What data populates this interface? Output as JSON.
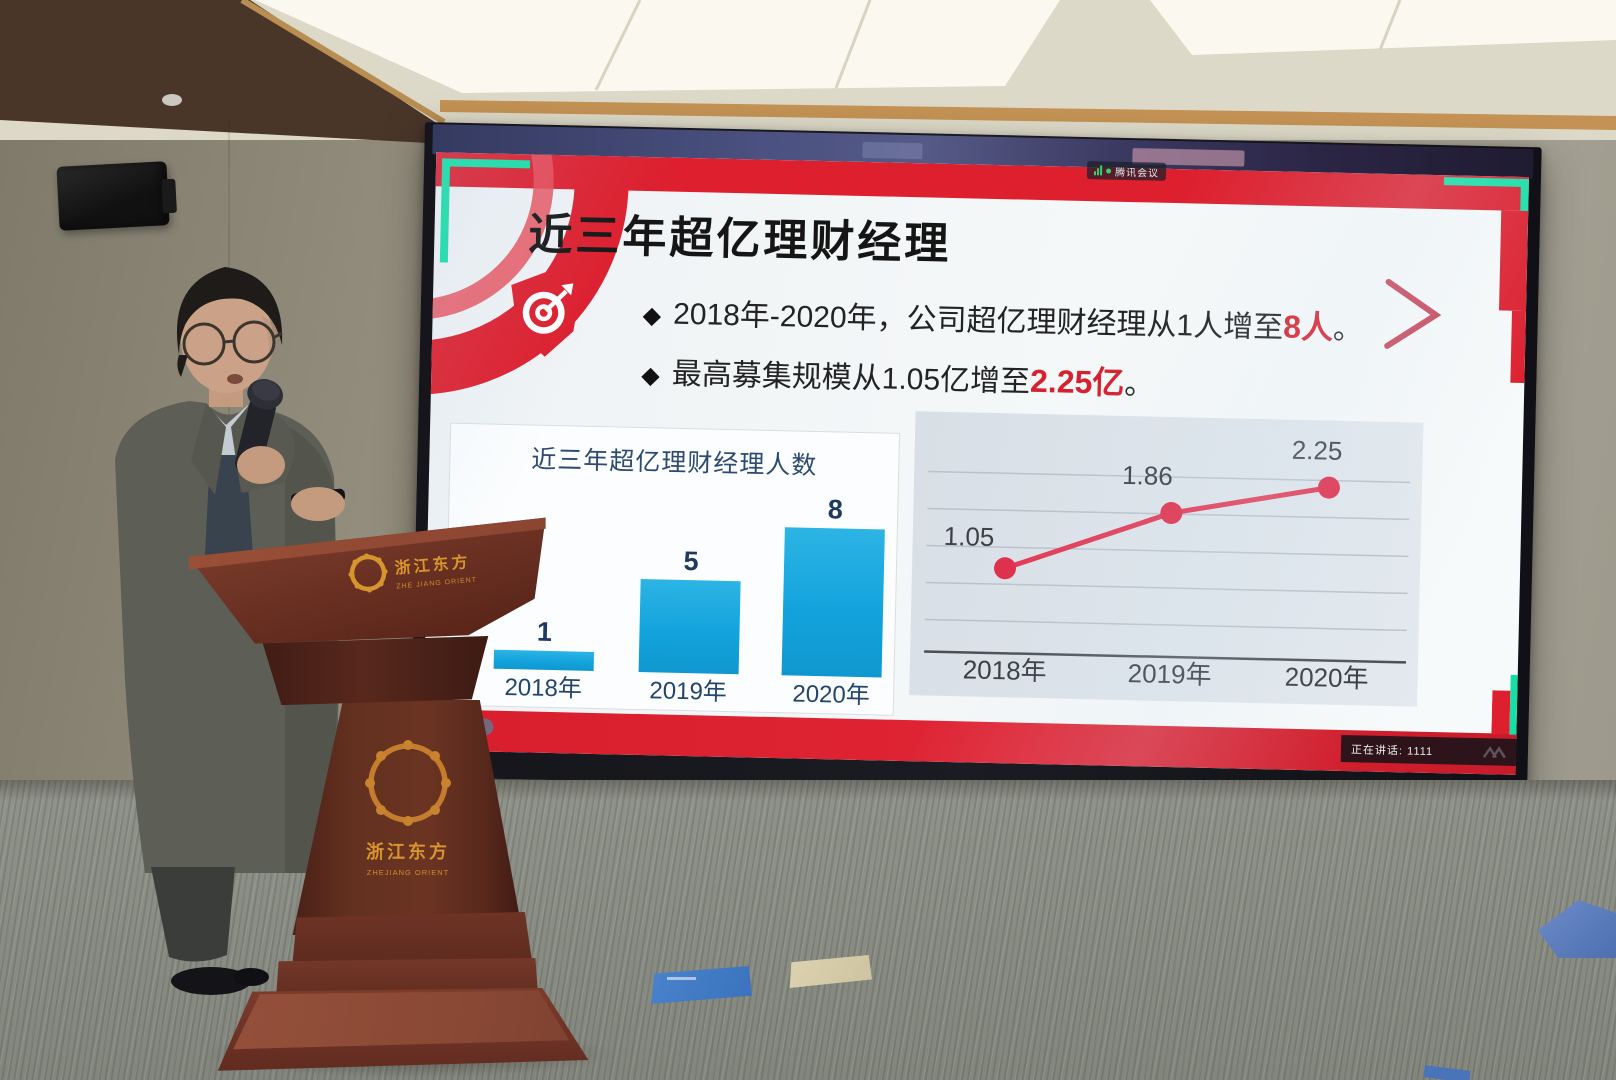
{
  "meeting_overlay": {
    "app_name": "腾讯会议",
    "speaking_status": "正在讲话: 1111",
    "nav": {
      "pages_icon": "▦",
      "prev_icon": "‹"
    }
  },
  "slide": {
    "title": "近三年超亿理财经理",
    "bullet_marker": "◆",
    "bullets": [
      {
        "text": "2018年-2020年，公司超亿理财经理从1人增至",
        "highlight": "8人",
        "tail": "。"
      },
      {
        "text": "最高募集规模从1.05亿增至",
        "highlight": "2.25亿",
        "tail": "。"
      }
    ]
  },
  "chart_data": [
    {
      "type": "bar",
      "title": "近三年超亿理财经理人数",
      "categories": [
        "2018年",
        "2019年",
        "2020年"
      ],
      "values": [
        1,
        5,
        8
      ],
      "ylim": [
        0,
        8
      ],
      "grid": false,
      "value_labels": true,
      "bar_color": "#13a3dc",
      "label_color": "#1e3a63"
    },
    {
      "type": "line",
      "title": "",
      "categories": [
        "2018年",
        "2019年",
        "2020年"
      ],
      "values": [
        1.05,
        1.86,
        2.25
      ],
      "ylim": [
        0,
        2.5
      ],
      "grid": true,
      "legend": false,
      "value_labels": true,
      "line_color": "#e23a55",
      "panel_color": "#dde3e9"
    }
  ],
  "podium": {
    "top_logo_cn": "浙江东方",
    "top_logo_en": "ZHE JIANG ORIENT",
    "front_logo_cn": "浙江东方",
    "front_logo_en": "ZHEJIANG ORIENT"
  },
  "colors": {
    "slide_red": "#dd1f2e",
    "teal_accent": "#16dfa6",
    "bar_cyan": "#13a3dc",
    "line_red": "#e23a55"
  }
}
